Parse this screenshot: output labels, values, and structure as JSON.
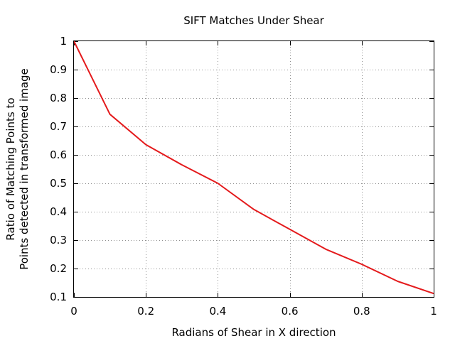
{
  "chart_data": {
    "type": "line",
    "title": "SIFT Matches Under Shear",
    "xlabel": "Radians of Shear in X direction",
    "ylabel_lines": [
      "Ratio of Matching Points to",
      "Points detected in transformed image"
    ],
    "xlim": [
      0,
      1
    ],
    "ylim": [
      0.1,
      1
    ],
    "x_ticks": [
      0,
      0.2,
      0.4,
      0.6,
      0.8,
      1
    ],
    "x_tick_labels": [
      "0",
      "0.2",
      "0.4",
      "0.6",
      "0.8",
      "1"
    ],
    "y_ticks": [
      0.1,
      0.2,
      0.3,
      0.4,
      0.5,
      0.6,
      0.7,
      0.8,
      0.9,
      1
    ],
    "y_tick_labels": [
      "0.1",
      "0.2",
      "0.3",
      "0.4",
      "0.5",
      "0.6",
      "0.7",
      "0.8",
      "0.9",
      "1"
    ],
    "grid": true,
    "series": [
      {
        "color": "#e41a1c",
        "x": [
          0,
          0.1,
          0.2,
          0.3,
          0.4,
          0.5,
          0.6,
          0.7,
          0.8,
          0.9,
          1.0
        ],
        "y": [
          1.0,
          0.743,
          0.636,
          0.565,
          0.5,
          0.408,
          0.338,
          0.268,
          0.215,
          0.155,
          0.112
        ]
      }
    ]
  }
}
